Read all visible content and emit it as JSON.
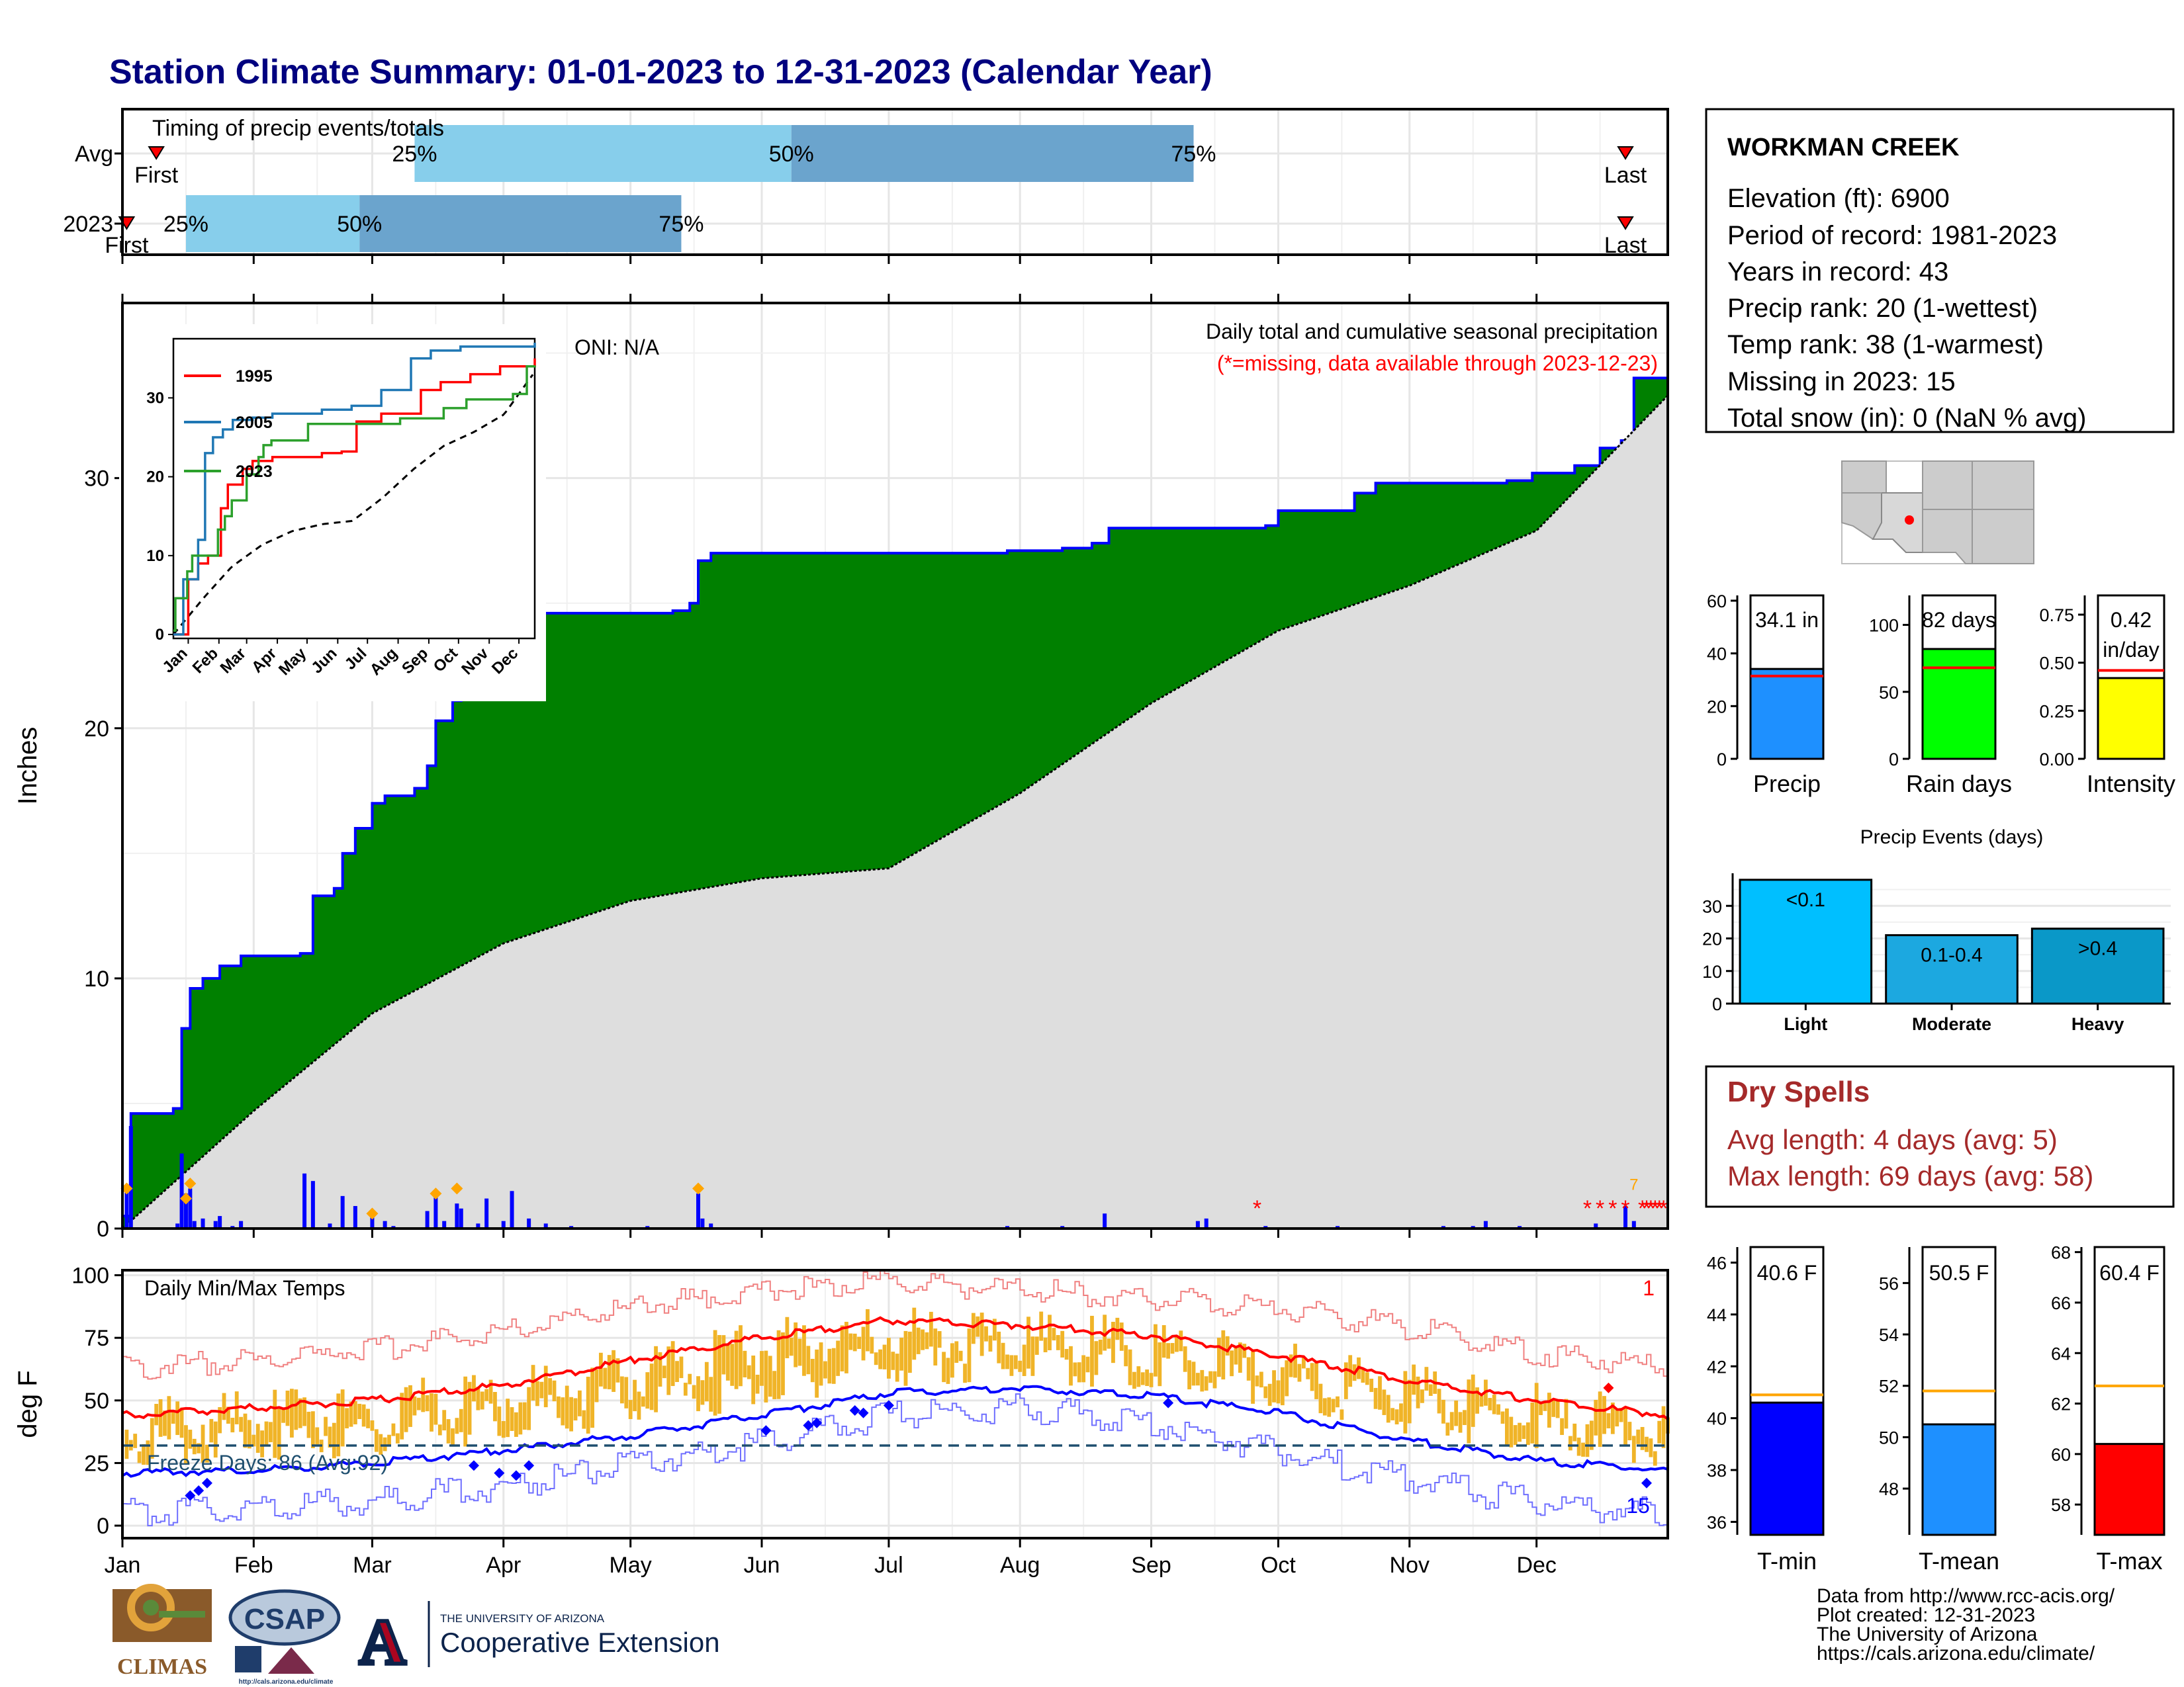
{
  "page": {
    "title": "Station Climate Summary: 01-01-2023 to 12-31-2023 (Calendar Year)"
  },
  "timing": {
    "label": "Timing of precip events/totals",
    "rows": [
      {
        "name": "Avg",
        "first_label": "First",
        "last_label": "Last",
        "q25_day": 69,
        "q50_day": 158,
        "q75_day": 253,
        "first_day": 8,
        "last_day": 355
      },
      {
        "name": "2023",
        "first_label": "First",
        "last_label": "Last",
        "q25_day": 15,
        "q50_day": 56,
        "q75_day": 132,
        "first_day": 1,
        "last_day": 355
      }
    ],
    "pct_labels": [
      "25%",
      "50%",
      "75%"
    ]
  },
  "colors": {
    "bar_light": "#87ceeb",
    "bar_dark": "#6ba4cd",
    "green": "#008000",
    "gray": "#dedede",
    "blue_line": "#0000ff",
    "orange": "#ffa500",
    "red": "#ff0000",
    "temp_bar": "#f0b428",
    "title": "#00007f",
    "dry": "#a52a2a"
  },
  "precip": {
    "ylabel": "Inches",
    "ylim": [
      0,
      37
    ],
    "yticks": [
      0,
      10,
      20,
      30
    ],
    "title": "Daily total and cumulative seasonal precipitation",
    "subtitle": "(*=missing, data available through 2023-12-23)",
    "oni": "ONI: N/A",
    "missing_count": "7",
    "months": [
      "Jan",
      "Feb",
      "Mar",
      "Apr",
      "May",
      "Jun",
      "Jul",
      "Aug",
      "Sep",
      "Oct",
      "Nov",
      "Dec"
    ],
    "missing_days": [
      268,
      346,
      349,
      352,
      355,
      359,
      360,
      361,
      362,
      363,
      364
    ],
    "cumulative_2023_steps": [
      [
        1,
        0.5
      ],
      [
        2,
        4.6
      ],
      [
        12,
        4.8
      ],
      [
        14,
        8.0
      ],
      [
        16,
        9.6
      ],
      [
        19,
        10.0
      ],
      [
        23,
        10.5
      ],
      [
        28,
        10.9
      ],
      [
        42,
        11.0
      ],
      [
        45,
        13.3
      ],
      [
        50,
        13.6
      ],
      [
        52,
        15.0
      ],
      [
        55,
        16.0
      ],
      [
        59,
        17.0
      ],
      [
        62,
        17.3
      ],
      [
        69,
        17.6
      ],
      [
        72,
        18.5
      ],
      [
        74,
        20.3
      ],
      [
        78,
        21.1
      ],
      [
        80,
        21.4
      ],
      [
        86,
        22.5
      ],
      [
        91,
        24.0
      ],
      [
        96,
        24.4
      ],
      [
        99,
        24.6
      ],
      [
        130,
        24.7
      ],
      [
        134,
        25.0
      ],
      [
        136,
        26.7
      ],
      [
        139,
        27.0
      ],
      [
        180,
        27.0
      ],
      [
        209,
        27.1
      ],
      [
        222,
        27.2
      ],
      [
        229,
        27.4
      ],
      [
        233,
        28.0
      ],
      [
        270,
        28.1
      ],
      [
        273,
        28.7
      ],
      [
        291,
        29.4
      ],
      [
        296,
        29.8
      ],
      [
        327,
        29.9
      ],
      [
        333,
        30.2
      ],
      [
        343,
        30.5
      ],
      [
        349,
        31.2
      ],
      [
        354,
        31.5
      ],
      [
        357,
        34.0
      ],
      [
        365,
        34.1
      ]
    ],
    "average_cumulative": [
      [
        0,
        0
      ],
      [
        31,
        4.7
      ],
      [
        59,
        8.6
      ],
      [
        90,
        11.4
      ],
      [
        120,
        13.1
      ],
      [
        151,
        14.0
      ],
      [
        181,
        14.4
      ],
      [
        212,
        17.4
      ],
      [
        243,
        21.0
      ],
      [
        273,
        23.9
      ],
      [
        304,
        25.7
      ],
      [
        334,
        27.9
      ],
      [
        365,
        33.3
      ]
    ],
    "daily_bars": [
      [
        1,
        1.5
      ],
      [
        2,
        4.1
      ],
      [
        13,
        0.2
      ],
      [
        14,
        3.0
      ],
      [
        15,
        1.4
      ],
      [
        16,
        1.6
      ],
      [
        17,
        0.3
      ],
      [
        19,
        0.4
      ],
      [
        22,
        0.3
      ],
      [
        23,
        0.5
      ],
      [
        26,
        0.1
      ],
      [
        28,
        0.3
      ],
      [
        43,
        2.2
      ],
      [
        45,
        1.9
      ],
      [
        49,
        0.2
      ],
      [
        52,
        1.3
      ],
      [
        55,
        0.9
      ],
      [
        59,
        0.6
      ],
      [
        62,
        0.3
      ],
      [
        64,
        0.1
      ],
      [
        72,
        0.7
      ],
      [
        74,
        1.5
      ],
      [
        76,
        0.3
      ],
      [
        79,
        1.0
      ],
      [
        80,
        0.8
      ],
      [
        84,
        0.2
      ],
      [
        86,
        1.2
      ],
      [
        90,
        0.3
      ],
      [
        92,
        1.5
      ],
      [
        96,
        0.4
      ],
      [
        100,
        0.2
      ],
      [
        106,
        0.1
      ],
      [
        124,
        0.1
      ],
      [
        136,
        1.4
      ],
      [
        137,
        0.4
      ],
      [
        139,
        0.2
      ],
      [
        209,
        0.1
      ],
      [
        222,
        0.1
      ],
      [
        232,
        0.6
      ],
      [
        254,
        0.3
      ],
      [
        256,
        0.4
      ],
      [
        270,
        0.1
      ],
      [
        287,
        0.1
      ],
      [
        312,
        0.1
      ],
      [
        319,
        0.1
      ],
      [
        322,
        0.3
      ],
      [
        330,
        0.1
      ],
      [
        348,
        0.2
      ],
      [
        355,
        0.9
      ],
      [
        357,
        0.3
      ]
    ],
    "orange_events": [
      [
        1,
        1.6
      ],
      [
        15,
        1.2
      ],
      [
        16,
        1.8
      ],
      [
        59,
        0.6
      ],
      [
        74,
        1.4
      ],
      [
        79,
        1.6
      ],
      [
        136,
        1.6
      ]
    ]
  },
  "inset": {
    "yticks": [
      0,
      10,
      20,
      30
    ],
    "months": [
      "Jan",
      "Feb",
      "Mar",
      "Apr",
      "May",
      "Jun",
      "Jul",
      "Aug",
      "Sep",
      "Oct",
      "Nov",
      "Dec"
    ],
    "legend": [
      "1995",
      "2005",
      "2023"
    ],
    "series": [
      {
        "name": "1995",
        "color": "#ff0000",
        "steps": [
          [
            0,
            0
          ],
          [
            15,
            7
          ],
          [
            25,
            9
          ],
          [
            35,
            10
          ],
          [
            48,
            16
          ],
          [
            55,
            19
          ],
          [
            70,
            21
          ],
          [
            80,
            22
          ],
          [
            100,
            22.5
          ],
          [
            150,
            23
          ],
          [
            170,
            23.2
          ],
          [
            185,
            27
          ],
          [
            210,
            28
          ],
          [
            250,
            31
          ],
          [
            270,
            32
          ],
          [
            300,
            33
          ],
          [
            330,
            34
          ],
          [
            365,
            35
          ]
        ]
      },
      {
        "name": "2005",
        "color": "#1f77b4",
        "steps": [
          [
            0,
            0
          ],
          [
            10,
            7
          ],
          [
            25,
            12
          ],
          [
            32,
            23
          ],
          [
            40,
            25
          ],
          [
            50,
            26
          ],
          [
            60,
            27.2
          ],
          [
            80,
            27.5
          ],
          [
            100,
            28
          ],
          [
            150,
            28.5
          ],
          [
            180,
            29
          ],
          [
            210,
            31
          ],
          [
            240,
            35
          ],
          [
            260,
            36
          ],
          [
            290,
            36.5
          ],
          [
            365,
            37
          ]
        ]
      },
      {
        "name": "2023",
        "color": "#2ca02c",
        "steps": [
          [
            1,
            0.5
          ],
          [
            2,
            4.6
          ],
          [
            14,
            8.0
          ],
          [
            19,
            10.0
          ],
          [
            45,
            13.3
          ],
          [
            52,
            15.0
          ],
          [
            59,
            17.0
          ],
          [
            74,
            20.3
          ],
          [
            86,
            22.5
          ],
          [
            91,
            24.0
          ],
          [
            99,
            24.6
          ],
          [
            136,
            26.7
          ],
          [
            229,
            27.4
          ],
          [
            273,
            28.7
          ],
          [
            296,
            29.8
          ],
          [
            343,
            30.5
          ],
          [
            357,
            34.0
          ],
          [
            365,
            34.1
          ]
        ]
      }
    ],
    "average": [
      [
        0,
        0
      ],
      [
        31,
        4.7
      ],
      [
        59,
        8.6
      ],
      [
        90,
        11.4
      ],
      [
        120,
        13.1
      ],
      [
        151,
        14.0
      ],
      [
        181,
        14.4
      ],
      [
        212,
        17.4
      ],
      [
        243,
        21.0
      ],
      [
        273,
        23.9
      ],
      [
        304,
        25.7
      ],
      [
        334,
        27.9
      ],
      [
        365,
        33.3
      ]
    ]
  },
  "temps": {
    "ylabel": "deg F",
    "ylim": [
      -5,
      102
    ],
    "yticks": [
      0,
      25,
      50,
      75,
      100
    ],
    "title": "Daily Min/Max Temps",
    "freeze_label": "Freeze Days: 86 (Avg:92)",
    "freeze_value": 32,
    "missing_label": "1",
    "below_count": "15",
    "avg_max_curve": [
      [
        0,
        44
      ],
      [
        31,
        47
      ],
      [
        59,
        50
      ],
      [
        90,
        56
      ],
      [
        120,
        66
      ],
      [
        151,
        75
      ],
      [
        181,
        82
      ],
      [
        212,
        80
      ],
      [
        243,
        76
      ],
      [
        273,
        68
      ],
      [
        304,
        58
      ],
      [
        334,
        50
      ],
      [
        365,
        44
      ]
    ],
    "avg_min_curve": [
      [
        0,
        21
      ],
      [
        31,
        22
      ],
      [
        59,
        25
      ],
      [
        90,
        30
      ],
      [
        120,
        36
      ],
      [
        151,
        44
      ],
      [
        181,
        53
      ],
      [
        212,
        55
      ],
      [
        243,
        52
      ],
      [
        273,
        45
      ],
      [
        304,
        34
      ],
      [
        334,
        26
      ],
      [
        365,
        22
      ]
    ],
    "record_max_curve": [
      [
        0,
        63
      ],
      [
        31,
        66
      ],
      [
        59,
        70
      ],
      [
        90,
        78
      ],
      [
        120,
        87
      ],
      [
        151,
        94
      ],
      [
        181,
        97
      ],
      [
        212,
        94
      ],
      [
        243,
        91
      ],
      [
        273,
        87
      ],
      [
        304,
        79
      ],
      [
        334,
        69
      ],
      [
        365,
        63
      ]
    ],
    "record_min_curve": [
      [
        0,
        5
      ],
      [
        31,
        7
      ],
      [
        59,
        10
      ],
      [
        90,
        16
      ],
      [
        120,
        24
      ],
      [
        151,
        33
      ],
      [
        181,
        44
      ],
      [
        212,
        47
      ],
      [
        243,
        41
      ],
      [
        273,
        30
      ],
      [
        304,
        18
      ],
      [
        334,
        9
      ],
      [
        365,
        5
      ]
    ],
    "blue_diamonds": [
      [
        16,
        12
      ],
      [
        18,
        14
      ],
      [
        20,
        17
      ],
      [
        83,
        24
      ],
      [
        89,
        21
      ],
      [
        93,
        20
      ],
      [
        96,
        24
      ],
      [
        152,
        38
      ],
      [
        162,
        40
      ],
      [
        164,
        41
      ],
      [
        173,
        46
      ],
      [
        175,
        45
      ],
      [
        181,
        48
      ],
      [
        247,
        49
      ],
      [
        360,
        17
      ]
    ],
    "red_diamonds": [
      [
        351,
        55
      ]
    ]
  },
  "station": {
    "name": "WORKMAN CREEK",
    "lines": [
      "Elevation (ft): 6900",
      "Period of record: 1981-2023",
      "Years in record: 43",
      "Precip rank: 20 (1-wettest)",
      "Temp rank: 38 (1-warmest)",
      "Missing in 2023: 15",
      "Total snow (in): 0 (NaN % avg)"
    ]
  },
  "map": {
    "description": "Arizona locator"
  },
  "summary_bars": [
    {
      "xlabel": "Precip",
      "value_label": "34.1 in",
      "value": 34.1,
      "avg": 31.4,
      "ylim": [
        0,
        62
      ],
      "yticks": [
        "0",
        "20",
        "40",
        "60"
      ],
      "ytick_values": [
        0,
        20,
        40,
        60
      ],
      "color": "#1e90ff"
    },
    {
      "xlabel": "Rain days",
      "value_label": "82 days",
      "value": 82,
      "avg": 68,
      "ylim": [
        0,
        122
      ],
      "yticks": [
        "0",
        "50",
        "100"
      ],
      "ytick_values": [
        0,
        50,
        100
      ],
      "color": "#00ff00"
    },
    {
      "xlabel": "Intensity",
      "value_label": "0.42",
      "value_label2": "in/day",
      "value": 0.42,
      "avg": 0.46,
      "ylim": [
        0,
        0.85
      ],
      "yticks": [
        "0.00",
        "0.25",
        "0.50",
        "0.75"
      ],
      "ytick_values": [
        0,
        0.25,
        0.5,
        0.75
      ],
      "color": "#ffff00"
    }
  ],
  "events": {
    "title": "Precip Events (days)",
    "categories": [
      "Light",
      "Moderate",
      "Heavy"
    ],
    "labels": [
      "<0.1",
      "0.1-0.4",
      ">0.4"
    ],
    "values": [
      38,
      21,
      23
    ],
    "colors": [
      "#00bfff",
      "#1ca8e0",
      "#0a98c8"
    ],
    "ylim": [
      0,
      40
    ],
    "yticks": [
      0,
      10,
      20,
      30
    ]
  },
  "dry": {
    "title": "Dry Spells",
    "avg": "Avg length: 4 days (avg: 5)",
    "max": "Max length: 69 days (avg: 58)"
  },
  "temp_bars": [
    {
      "xlabel": "T-min",
      "value_label": "40.6 F",
      "value": 40.6,
      "avg": 40.9,
      "ylim": [
        35.5,
        46.6
      ],
      "yticks": [
        36,
        38,
        40,
        42,
        44,
        46
      ],
      "color": "#0000ff"
    },
    {
      "xlabel": "T-mean",
      "value_label": "50.5 F",
      "value": 50.5,
      "avg": 51.8,
      "ylim": [
        46.2,
        57.4
      ],
      "yticks": [
        48,
        50,
        52,
        54,
        56
      ],
      "color": "#1e90ff"
    },
    {
      "xlabel": "T-max",
      "value_label": "60.4 F",
      "value": 60.4,
      "avg": 62.7,
      "ylim": [
        56.8,
        68.2
      ],
      "yticks": [
        58,
        60,
        62,
        64,
        66,
        68
      ],
      "color": "#ff0000"
    }
  ],
  "footer": {
    "lines": [
      "Data from http://www.rcc-acis.org/",
      "Plot created: 12-31-2023",
      "The University of Arizona",
      "https://cals.arizona.edu/climate/"
    ],
    "logo_climas": "CLIMAS",
    "logo_csap": "CSAP",
    "logo_csap_url": "http://cals.arizona.edu/climate",
    "ua_small": "THE UNIVERSITY OF ARIZONA",
    "ua_big": "Cooperative Extension"
  }
}
